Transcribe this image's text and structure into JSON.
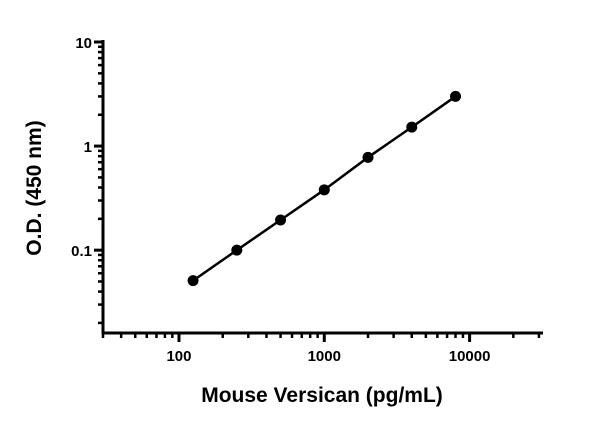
{
  "chart_data": {
    "type": "line",
    "title": "",
    "xlabel": "Mouse Versican (pg/mL)",
    "ylabel": "O.D. (450 nm)",
    "x_scale": "log",
    "y_scale": "log",
    "xlim": [
      30,
      32000
    ],
    "ylim": [
      0.016,
      10
    ],
    "x_ticks": [
      100,
      1000,
      10000
    ],
    "x_tick_labels": [
      "100",
      "1000",
      "10000"
    ],
    "y_ticks": [
      0.1,
      1,
      10
    ],
    "y_tick_labels": [
      "0.1",
      "1",
      "10"
    ],
    "grid": false,
    "legend": "none",
    "series": [
      {
        "x": [
          125,
          250,
          500,
          1000,
          2000,
          4000,
          8000
        ],
        "y": [
          0.051,
          0.1,
          0.195,
          0.38,
          0.78,
          1.52,
          3.0
        ],
        "color": "#000000",
        "marker": "circle"
      }
    ]
  }
}
